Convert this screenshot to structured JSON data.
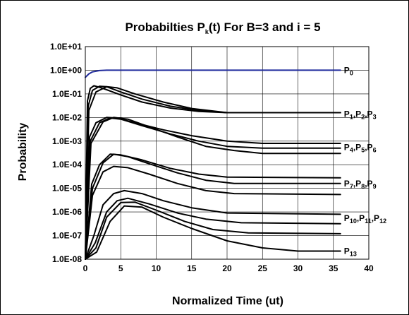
{
  "chart_data": {
    "type": "line",
    "title": {
      "main": "Probabilties P",
      "sub": "k",
      "rest": "(t) For B=3 and i = 5"
    },
    "xlabel": "Normalized Time   (ut)",
    "ylabel": "Probability",
    "xlim": [
      0,
      40
    ],
    "ylim": [
      1e-08,
      10
    ],
    "yscale": "log",
    "grid": true,
    "x_ticks": [
      "0",
      "5",
      "10",
      "15",
      "20",
      "25",
      "30",
      "35",
      "40"
    ],
    "y_ticks": [
      "1.0E-08",
      "1.0E-07",
      "1.0E-06",
      "1.0E-05",
      "1.0E-04",
      "1.0E-03",
      "1.0E-02",
      "1.0E-01",
      "1.0E+00",
      "1.0E+01"
    ],
    "annotations": [
      {
        "parts": [
          [
            "P",
            "0"
          ]
        ],
        "x": 36,
        "y": 1.0
      },
      {
        "parts": [
          [
            "P",
            "1"
          ],
          [
            "P",
            "2"
          ],
          [
            "P",
            "3"
          ]
        ],
        "x": 36,
        "y": 0.014
      },
      {
        "parts": [
          [
            "P",
            "4"
          ],
          [
            "P",
            "5"
          ],
          [
            "P",
            "6"
          ]
        ],
        "x": 36,
        "y": 0.00055
      },
      {
        "parts": [
          [
            "P",
            "7"
          ],
          [
            "P",
            "8"
          ],
          [
            "P",
            "9"
          ]
        ],
        "x": 36,
        "y": 1.6e-05
      },
      {
        "parts": [
          [
            "P",
            "10"
          ],
          [
            "P",
            "11"
          ],
          [
            "P",
            "12"
          ]
        ],
        "x": 36,
        "y": 5.5e-07
      },
      {
        "parts": [
          [
            "P",
            "13"
          ]
        ],
        "x": 36,
        "y": 2.2e-08
      }
    ],
    "colors": {
      "p0": "#1f2a9c",
      "others": "#000000",
      "grid": "#000000"
    },
    "series": [
      {
        "values": [
          [
            0,
            0.5
          ],
          [
            0.5,
            0.7
          ],
          [
            1,
            0.85
          ],
          [
            2,
            0.97
          ],
          [
            3,
            1.0
          ],
          [
            36,
            1.0
          ]
        ]
      },
      {
        "values": [
          [
            0,
            1e-08
          ],
          [
            0.3,
            0.05
          ],
          [
            0.7,
            0.17
          ],
          [
            1.2,
            0.22
          ],
          [
            2,
            0.19
          ],
          [
            3,
            0.15
          ],
          [
            5,
            0.09
          ],
          [
            8,
            0.045
          ],
          [
            12,
            0.025
          ],
          [
            16,
            0.018
          ],
          [
            20,
            0.016
          ],
          [
            36,
            0.016
          ]
        ]
      },
      {
        "values": [
          [
            0,
            1e-08
          ],
          [
            0.4,
            0.03
          ],
          [
            1,
            0.14
          ],
          [
            2,
            0.21
          ],
          [
            3,
            0.2
          ],
          [
            5,
            0.12
          ],
          [
            8,
            0.06
          ],
          [
            12,
            0.03
          ],
          [
            16,
            0.02
          ],
          [
            20,
            0.016
          ],
          [
            36,
            0.016
          ]
        ]
      },
      {
        "values": [
          [
            0,
            1e-08
          ],
          [
            0.5,
            0.02
          ],
          [
            1.5,
            0.12
          ],
          [
            3,
            0.2
          ],
          [
            4.5,
            0.18
          ],
          [
            7,
            0.1
          ],
          [
            11,
            0.045
          ],
          [
            15,
            0.024
          ],
          [
            20,
            0.016
          ],
          [
            36,
            0.016
          ]
        ]
      },
      {
        "values": [
          [
            0,
            1e-08
          ],
          [
            0.6,
            0.0015
          ],
          [
            1.5,
            0.006
          ],
          [
            3,
            0.01
          ],
          [
            4.5,
            0.0095
          ],
          [
            7,
            0.006
          ],
          [
            11,
            0.003
          ],
          [
            15,
            0.0017
          ],
          [
            20,
            0.001
          ],
          [
            25,
            0.0008
          ],
          [
            36,
            0.0008
          ]
        ]
      },
      {
        "values": [
          [
            0,
            1e-08
          ],
          [
            0.7,
            0.001
          ],
          [
            2,
            0.006
          ],
          [
            3.5,
            0.0095
          ],
          [
            5,
            0.0085
          ],
          [
            8,
            0.0045
          ],
          [
            12,
            0.002
          ],
          [
            16,
            0.001
          ],
          [
            20,
            0.0006
          ],
          [
            25,
            0.0005
          ],
          [
            36,
            0.0005
          ]
        ]
      },
      {
        "values": [
          [
            0,
            1e-08
          ],
          [
            0.8,
            0.0008
          ],
          [
            2.5,
            0.0065
          ],
          [
            4,
            0.01
          ],
          [
            6,
            0.0085
          ],
          [
            9,
            0.004
          ],
          [
            13,
            0.0015
          ],
          [
            17,
            0.0006
          ],
          [
            21,
            0.0004
          ],
          [
            25,
            0.0003
          ],
          [
            36,
            0.0003
          ]
        ]
      },
      {
        "values": [
          [
            0,
            1e-08
          ],
          [
            0.9,
            1.5e-05
          ],
          [
            2,
            0.0001
          ],
          [
            3.5,
            0.00028
          ],
          [
            5,
            0.00026
          ],
          [
            8,
            0.00016
          ],
          [
            12,
            7e-05
          ],
          [
            16,
            4e-05
          ],
          [
            20,
            3e-05
          ],
          [
            36,
            2.8e-05
          ]
        ]
      },
      {
        "values": [
          [
            0,
            1e-08
          ],
          [
            1,
            1e-05
          ],
          [
            2.5,
            0.00012
          ],
          [
            4,
            0.00028
          ],
          [
            6,
            0.00022
          ],
          [
            9,
            0.00011
          ],
          [
            13,
            4.5e-05
          ],
          [
            17,
            2.2e-05
          ],
          [
            21,
            1.6e-05
          ],
          [
            36,
            1.6e-05
          ]
        ]
      },
      {
        "values": [
          [
            0,
            1e-08
          ],
          [
            1,
            5e-06
          ],
          [
            2.5,
            5e-05
          ],
          [
            4,
            8.5e-05
          ],
          [
            6,
            7.5e-05
          ],
          [
            9,
            4e-05
          ],
          [
            13,
            1.6e-05
          ],
          [
            17,
            8e-06
          ],
          [
            21,
            6e-06
          ],
          [
            36,
            5.5e-06
          ]
        ]
      },
      {
        "values": [
          [
            0,
            1e-08
          ],
          [
            1.2,
            1e-07
          ],
          [
            2.5,
            2e-06
          ],
          [
            4,
            6e-06
          ],
          [
            5.5,
            8e-06
          ],
          [
            8,
            6e-06
          ],
          [
            11,
            3e-06
          ],
          [
            15,
            1.5e-06
          ],
          [
            20,
            9e-07
          ],
          [
            36,
            8e-07
          ]
        ]
      },
      {
        "values": [
          [
            0,
            1e-08
          ],
          [
            1.4,
            5e-08
          ],
          [
            3,
            1e-06
          ],
          [
            4.5,
            3e-06
          ],
          [
            6,
            3.8e-06
          ],
          [
            9,
            2.2e-06
          ],
          [
            13,
            9e-07
          ],
          [
            17,
            5e-07
          ],
          [
            22,
            3.5e-07
          ],
          [
            36,
            3.2e-07
          ]
        ]
      },
      {
        "values": [
          [
            0,
            1e-08
          ],
          [
            1.5,
            3e-08
          ],
          [
            3,
            6e-07
          ],
          [
            5,
            2.5e-06
          ],
          [
            7,
            2.6e-06
          ],
          [
            10,
            1.2e-06
          ],
          [
            14,
            4e-07
          ],
          [
            18,
            1.8e-07
          ],
          [
            23,
            1.3e-07
          ],
          [
            36,
            1.2e-07
          ]
        ]
      },
      {
        "values": [
          [
            0,
            1e-08
          ],
          [
            1.6,
            2e-08
          ],
          [
            3.5,
            4e-07
          ],
          [
            5.5,
            1.8e-06
          ],
          [
            8,
            1.6e-06
          ],
          [
            11,
            6e-07
          ],
          [
            15,
            2e-07
          ],
          [
            20,
            6e-08
          ],
          [
            25,
            3e-08
          ],
          [
            30,
            2.2e-08
          ],
          [
            36,
            2.2e-08
          ]
        ]
      }
    ]
  }
}
